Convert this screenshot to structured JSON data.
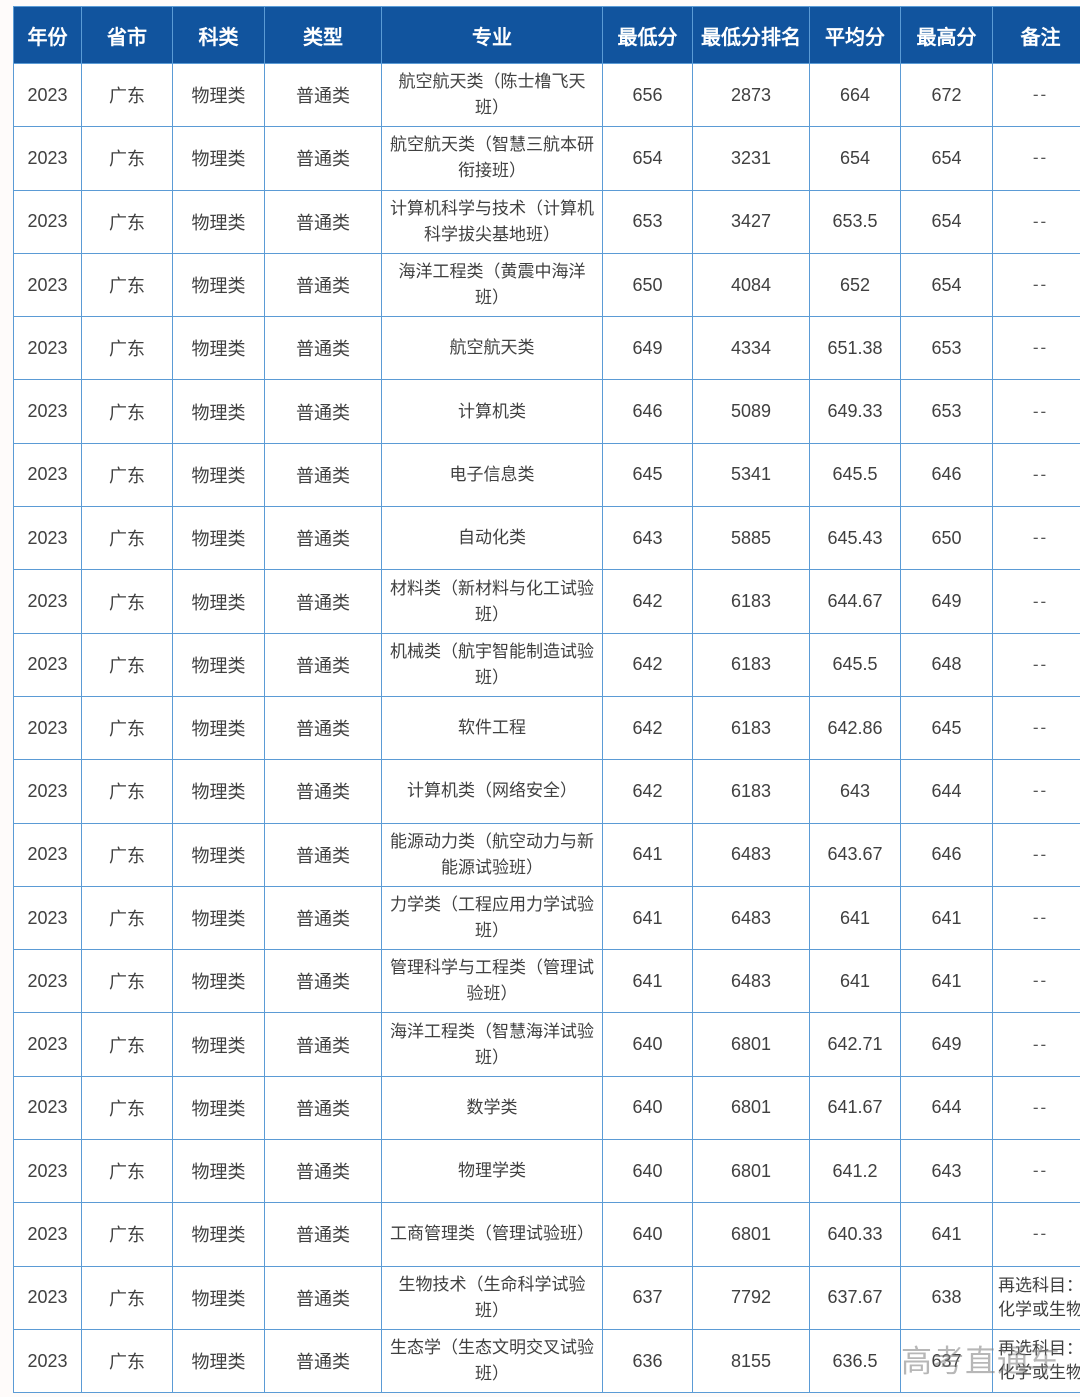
{
  "page": {
    "watermark": "高考直通车"
  },
  "colors": {
    "header_bg": "#11549E",
    "border": "#5B9BD5",
    "header_text": "#FFFFFF",
    "body_text": "#404040",
    "watermark_gray": "#7D7D7D"
  },
  "table": {
    "headers": [
      "年份",
      "省市",
      "科类",
      "类型",
      "专业",
      "最低分",
      "最低分排名",
      "平均分",
      "最高分",
      "备注"
    ],
    "rows": [
      [
        "2023",
        "广东",
        "物理类",
        "普通类",
        "航空航天类（陈士橹飞天班）",
        "656",
        "2873",
        "664",
        "672",
        "--"
      ],
      [
        "2023",
        "广东",
        "物理类",
        "普通类",
        "航空航天类（智慧三航本研衔接班）",
        "654",
        "3231",
        "654",
        "654",
        "--"
      ],
      [
        "2023",
        "广东",
        "物理类",
        "普通类",
        "计算机科学与技术（计算机科学拔尖基地班）",
        "653",
        "3427",
        "653.5",
        "654",
        "--"
      ],
      [
        "2023",
        "广东",
        "物理类",
        "普通类",
        "海洋工程类（黄震中海洋班）",
        "650",
        "4084",
        "652",
        "654",
        "--"
      ],
      [
        "2023",
        "广东",
        "物理类",
        "普通类",
        "航空航天类",
        "649",
        "4334",
        "651.38",
        "653",
        "--"
      ],
      [
        "2023",
        "广东",
        "物理类",
        "普通类",
        "计算机类",
        "646",
        "5089",
        "649.33",
        "653",
        "--"
      ],
      [
        "2023",
        "广东",
        "物理类",
        "普通类",
        "电子信息类",
        "645",
        "5341",
        "645.5",
        "646",
        "--"
      ],
      [
        "2023",
        "广东",
        "物理类",
        "普通类",
        "自动化类",
        "643",
        "5885",
        "645.43",
        "650",
        "--"
      ],
      [
        "2023",
        "广东",
        "物理类",
        "普通类",
        "材料类（新材料与化工试验班）",
        "642",
        "6183",
        "644.67",
        "649",
        "--"
      ],
      [
        "2023",
        "广东",
        "物理类",
        "普通类",
        "机械类（航宇智能制造试验班）",
        "642",
        "6183",
        "645.5",
        "648",
        "--"
      ],
      [
        "2023",
        "广东",
        "物理类",
        "普通类",
        "软件工程",
        "642",
        "6183",
        "642.86",
        "645",
        "--"
      ],
      [
        "2023",
        "广东",
        "物理类",
        "普通类",
        "计算机类（网络安全）",
        "642",
        "6183",
        "643",
        "644",
        "--"
      ],
      [
        "2023",
        "广东",
        "物理类",
        "普通类",
        "能源动力类（航空动力与新能源试验班）",
        "641",
        "6483",
        "643.67",
        "646",
        "--"
      ],
      [
        "2023",
        "广东",
        "物理类",
        "普通类",
        "力学类（工程应用力学试验班）",
        "641",
        "6483",
        "641",
        "641",
        "--"
      ],
      [
        "2023",
        "广东",
        "物理类",
        "普通类",
        "管理科学与工程类（管理试验班）",
        "641",
        "6483",
        "641",
        "641",
        "--"
      ],
      [
        "2023",
        "广东",
        "物理类",
        "普通类",
        "海洋工程类（智慧海洋试验班）",
        "640",
        "6801",
        "642.71",
        "649",
        "--"
      ],
      [
        "2023",
        "广东",
        "物理类",
        "普通类",
        "数学类",
        "640",
        "6801",
        "641.67",
        "644",
        "--"
      ],
      [
        "2023",
        "广东",
        "物理类",
        "普通类",
        "物理学类",
        "640",
        "6801",
        "641.2",
        "643",
        "--"
      ],
      [
        "2023",
        "广东",
        "物理类",
        "普通类",
        "工商管理类（管理试验班）",
        "640",
        "6801",
        "640.33",
        "641",
        "--"
      ],
      [
        "2023",
        "广东",
        "物理类",
        "普通类",
        "生物技术（生命科学试验班）",
        "637",
        "7792",
        "637.67",
        "638",
        "再选科目：化学或生物"
      ],
      [
        "2023",
        "广东",
        "物理类",
        "普通类",
        "生态学（生态文明交叉试验班）",
        "636",
        "8155",
        "636.5",
        "637",
        "再选科目：化学或生物"
      ]
    ]
  }
}
